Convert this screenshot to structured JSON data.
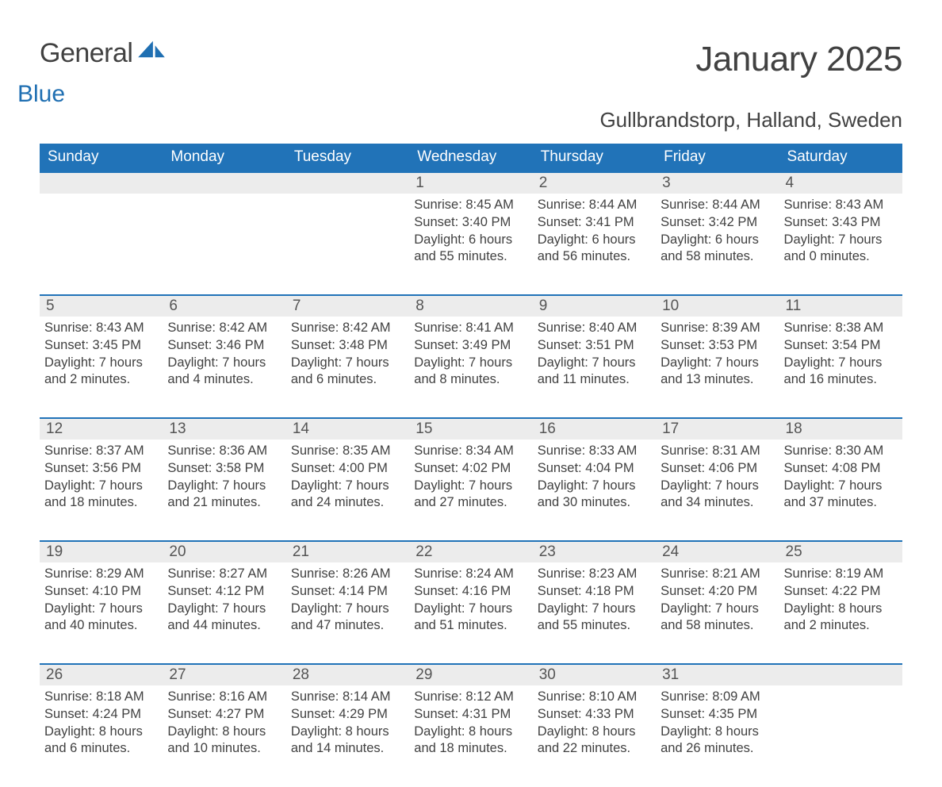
{
  "logo": {
    "gray": "General",
    "blue": "Blue"
  },
  "title": "January 2025",
  "location": "Gullbrandstorp, Halland, Sweden",
  "colors": {
    "header_bg": "#2173b8",
    "header_text": "#ffffff",
    "daynum_bg": "#ececec",
    "daynum_border": "#2173b8",
    "body_text": "#414141",
    "logo_blue": "#1f6fb2",
    "page_bg": "#ffffff"
  },
  "typography": {
    "title_fontsize": 44,
    "location_fontsize": 26,
    "header_fontsize": 19,
    "daynum_fontsize": 19,
    "cell_fontsize": 16.5
  },
  "weekdays": [
    "Sunday",
    "Monday",
    "Tuesday",
    "Wednesday",
    "Thursday",
    "Friday",
    "Saturday"
  ],
  "weeks": [
    [
      null,
      null,
      null,
      {
        "num": "1",
        "sunrise": "Sunrise: 8:45 AM",
        "sunset": "Sunset: 3:40 PM",
        "d1": "Daylight: 6 hours",
        "d2": "and 55 minutes."
      },
      {
        "num": "2",
        "sunrise": "Sunrise: 8:44 AM",
        "sunset": "Sunset: 3:41 PM",
        "d1": "Daylight: 6 hours",
        "d2": "and 56 minutes."
      },
      {
        "num": "3",
        "sunrise": "Sunrise: 8:44 AM",
        "sunset": "Sunset: 3:42 PM",
        "d1": "Daylight: 6 hours",
        "d2": "and 58 minutes."
      },
      {
        "num": "4",
        "sunrise": "Sunrise: 8:43 AM",
        "sunset": "Sunset: 3:43 PM",
        "d1": "Daylight: 7 hours",
        "d2": "and 0 minutes."
      }
    ],
    [
      {
        "num": "5",
        "sunrise": "Sunrise: 8:43 AM",
        "sunset": "Sunset: 3:45 PM",
        "d1": "Daylight: 7 hours",
        "d2": "and 2 minutes."
      },
      {
        "num": "6",
        "sunrise": "Sunrise: 8:42 AM",
        "sunset": "Sunset: 3:46 PM",
        "d1": "Daylight: 7 hours",
        "d2": "and 4 minutes."
      },
      {
        "num": "7",
        "sunrise": "Sunrise: 8:42 AM",
        "sunset": "Sunset: 3:48 PM",
        "d1": "Daylight: 7 hours",
        "d2": "and 6 minutes."
      },
      {
        "num": "8",
        "sunrise": "Sunrise: 8:41 AM",
        "sunset": "Sunset: 3:49 PM",
        "d1": "Daylight: 7 hours",
        "d2": "and 8 minutes."
      },
      {
        "num": "9",
        "sunrise": "Sunrise: 8:40 AM",
        "sunset": "Sunset: 3:51 PM",
        "d1": "Daylight: 7 hours",
        "d2": "and 11 minutes."
      },
      {
        "num": "10",
        "sunrise": "Sunrise: 8:39 AM",
        "sunset": "Sunset: 3:53 PM",
        "d1": "Daylight: 7 hours",
        "d2": "and 13 minutes."
      },
      {
        "num": "11",
        "sunrise": "Sunrise: 8:38 AM",
        "sunset": "Sunset: 3:54 PM",
        "d1": "Daylight: 7 hours",
        "d2": "and 16 minutes."
      }
    ],
    [
      {
        "num": "12",
        "sunrise": "Sunrise: 8:37 AM",
        "sunset": "Sunset: 3:56 PM",
        "d1": "Daylight: 7 hours",
        "d2": "and 18 minutes."
      },
      {
        "num": "13",
        "sunrise": "Sunrise: 8:36 AM",
        "sunset": "Sunset: 3:58 PM",
        "d1": "Daylight: 7 hours",
        "d2": "and 21 minutes."
      },
      {
        "num": "14",
        "sunrise": "Sunrise: 8:35 AM",
        "sunset": "Sunset: 4:00 PM",
        "d1": "Daylight: 7 hours",
        "d2": "and 24 minutes."
      },
      {
        "num": "15",
        "sunrise": "Sunrise: 8:34 AM",
        "sunset": "Sunset: 4:02 PM",
        "d1": "Daylight: 7 hours",
        "d2": "and 27 minutes."
      },
      {
        "num": "16",
        "sunrise": "Sunrise: 8:33 AM",
        "sunset": "Sunset: 4:04 PM",
        "d1": "Daylight: 7 hours",
        "d2": "and 30 minutes."
      },
      {
        "num": "17",
        "sunrise": "Sunrise: 8:31 AM",
        "sunset": "Sunset: 4:06 PM",
        "d1": "Daylight: 7 hours",
        "d2": "and 34 minutes."
      },
      {
        "num": "18",
        "sunrise": "Sunrise: 8:30 AM",
        "sunset": "Sunset: 4:08 PM",
        "d1": "Daylight: 7 hours",
        "d2": "and 37 minutes."
      }
    ],
    [
      {
        "num": "19",
        "sunrise": "Sunrise: 8:29 AM",
        "sunset": "Sunset: 4:10 PM",
        "d1": "Daylight: 7 hours",
        "d2": "and 40 minutes."
      },
      {
        "num": "20",
        "sunrise": "Sunrise: 8:27 AM",
        "sunset": "Sunset: 4:12 PM",
        "d1": "Daylight: 7 hours",
        "d2": "and 44 minutes."
      },
      {
        "num": "21",
        "sunrise": "Sunrise: 8:26 AM",
        "sunset": "Sunset: 4:14 PM",
        "d1": "Daylight: 7 hours",
        "d2": "and 47 minutes."
      },
      {
        "num": "22",
        "sunrise": "Sunrise: 8:24 AM",
        "sunset": "Sunset: 4:16 PM",
        "d1": "Daylight: 7 hours",
        "d2": "and 51 minutes."
      },
      {
        "num": "23",
        "sunrise": "Sunrise: 8:23 AM",
        "sunset": "Sunset: 4:18 PM",
        "d1": "Daylight: 7 hours",
        "d2": "and 55 minutes."
      },
      {
        "num": "24",
        "sunrise": "Sunrise: 8:21 AM",
        "sunset": "Sunset: 4:20 PM",
        "d1": "Daylight: 7 hours",
        "d2": "and 58 minutes."
      },
      {
        "num": "25",
        "sunrise": "Sunrise: 8:19 AM",
        "sunset": "Sunset: 4:22 PM",
        "d1": "Daylight: 8 hours",
        "d2": "and 2 minutes."
      }
    ],
    [
      {
        "num": "26",
        "sunrise": "Sunrise: 8:18 AM",
        "sunset": "Sunset: 4:24 PM",
        "d1": "Daylight: 8 hours",
        "d2": "and 6 minutes."
      },
      {
        "num": "27",
        "sunrise": "Sunrise: 8:16 AM",
        "sunset": "Sunset: 4:27 PM",
        "d1": "Daylight: 8 hours",
        "d2": "and 10 minutes."
      },
      {
        "num": "28",
        "sunrise": "Sunrise: 8:14 AM",
        "sunset": "Sunset: 4:29 PM",
        "d1": "Daylight: 8 hours",
        "d2": "and 14 minutes."
      },
      {
        "num": "29",
        "sunrise": "Sunrise: 8:12 AM",
        "sunset": "Sunset: 4:31 PM",
        "d1": "Daylight: 8 hours",
        "d2": "and 18 minutes."
      },
      {
        "num": "30",
        "sunrise": "Sunrise: 8:10 AM",
        "sunset": "Sunset: 4:33 PM",
        "d1": "Daylight: 8 hours",
        "d2": "and 22 minutes."
      },
      {
        "num": "31",
        "sunrise": "Sunrise: 8:09 AM",
        "sunset": "Sunset: 4:35 PM",
        "d1": "Daylight: 8 hours",
        "d2": "and 26 minutes."
      },
      null
    ]
  ]
}
